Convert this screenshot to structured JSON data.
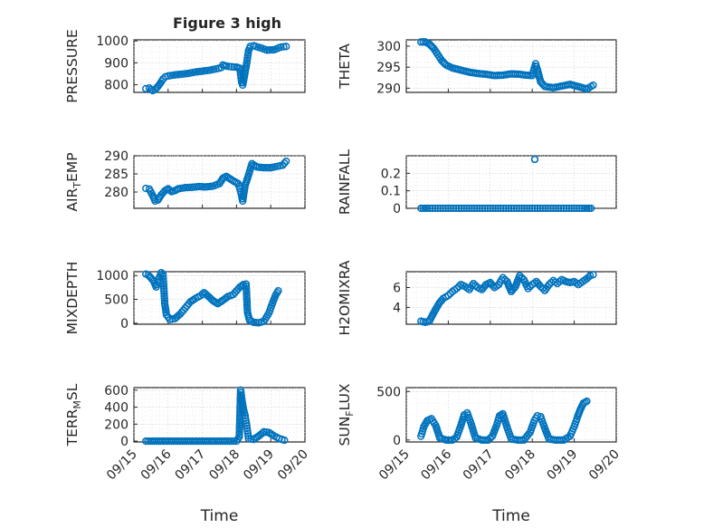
{
  "figure": {
    "title": "Figure 3 high",
    "marker_color": "#0072BD"
  },
  "chart_data": [
    {
      "type": "scatter",
      "ylabel": "PRESSURE",
      "xlabel": "",
      "title": "Figure 3 high",
      "xlim": [
        0,
        5
      ],
      "ylim": [
        765,
        1005
      ],
      "yticks": [
        800,
        900,
        1000
      ],
      "yticklabels": [
        "800",
        "900",
        "1000"
      ],
      "xticks": [
        0,
        1,
        2,
        3,
        4,
        5
      ],
      "xticklabels": [],
      "grid": true,
      "trace": [
        [
          0.35,
          782
        ],
        [
          0.45,
          785
        ],
        [
          0.5,
          778
        ],
        [
          0.55,
          773
        ],
        [
          0.62,
          778
        ],
        [
          0.7,
          792
        ],
        [
          0.78,
          808
        ],
        [
          0.85,
          826
        ],
        [
          0.92,
          836
        ],
        [
          1.0,
          840
        ],
        [
          1.2,
          845
        ],
        [
          1.4,
          848
        ],
        [
          1.6,
          852
        ],
        [
          1.8,
          858
        ],
        [
          2.0,
          862
        ],
        [
          2.2,
          866
        ],
        [
          2.4,
          872
        ],
        [
          2.55,
          878
        ],
        [
          2.6,
          890
        ],
        [
          2.7,
          885
        ],
        [
          2.85,
          882
        ],
        [
          3.0,
          880
        ],
        [
          3.1,
          875
        ],
        [
          3.15,
          810
        ],
        [
          3.18,
          798
        ],
        [
          3.22,
          830
        ],
        [
          3.3,
          900
        ],
        [
          3.35,
          955
        ],
        [
          3.4,
          975
        ],
        [
          3.5,
          978
        ],
        [
          3.7,
          968
        ],
        [
          3.9,
          958
        ],
        [
          4.1,
          960
        ],
        [
          4.3,
          972
        ],
        [
          4.45,
          975
        ]
      ]
    },
    {
      "type": "scatter",
      "ylabel": "THETA",
      "xlabel": "",
      "xlim": [
        0,
        5
      ],
      "ylim": [
        289,
        301.5
      ],
      "yticks": [
        290,
        295,
        300
      ],
      "yticklabels": [
        "290",
        "295",
        "300"
      ],
      "xticks": [
        0,
        1,
        2,
        3,
        4,
        5
      ],
      "xticklabels": [],
      "grid": true,
      "trace": [
        [
          0.35,
          301
        ],
        [
          0.45,
          301
        ],
        [
          0.55,
          300.5
        ],
        [
          0.65,
          299.5
        ],
        [
          0.75,
          298
        ],
        [
          0.85,
          296.5
        ],
        [
          0.95,
          295.5
        ],
        [
          1.1,
          294.8
        ],
        [
          1.3,
          294.3
        ],
        [
          1.5,
          293.8
        ],
        [
          1.7,
          293.5
        ],
        [
          1.9,
          293.3
        ],
        [
          2.1,
          293.0
        ],
        [
          2.3,
          293.1
        ],
        [
          2.5,
          293.4
        ],
        [
          2.7,
          293.3
        ],
        [
          2.85,
          293.1
        ],
        [
          3.0,
          293.0
        ],
        [
          3.08,
          295.8
        ],
        [
          3.12,
          294.5
        ],
        [
          3.2,
          291.5
        ],
        [
          3.3,
          290.4
        ],
        [
          3.5,
          290.1
        ],
        [
          3.7,
          290.5
        ],
        [
          3.9,
          290.9
        ],
        [
          4.05,
          290.5
        ],
        [
          4.2,
          290.1
        ],
        [
          4.3,
          289.8
        ],
        [
          4.45,
          290.7
        ]
      ]
    },
    {
      "type": "scatter",
      "ylabel": "AIR_TEMP",
      "xlabel": "",
      "xlim": [
        0,
        5
      ],
      "ylim": [
        275.5,
        290
      ],
      "yticks": [
        280,
        285,
        290
      ],
      "yticklabels": [
        "280",
        "285",
        "290"
      ],
      "xticks": [
        0,
        1,
        2,
        3,
        4,
        5
      ],
      "xticklabels": [],
      "grid": true,
      "trace": [
        [
          0.35,
          281
        ],
        [
          0.45,
          280.8
        ],
        [
          0.55,
          279
        ],
        [
          0.62,
          277.5
        ],
        [
          0.7,
          277.8
        ],
        [
          0.8,
          279.2
        ],
        [
          0.9,
          280.3
        ],
        [
          1.0,
          280.9
        ],
        [
          1.1,
          280.1
        ],
        [
          1.2,
          280.4
        ],
        [
          1.3,
          280.9
        ],
        [
          1.5,
          281.2
        ],
        [
          1.7,
          281.3
        ],
        [
          1.9,
          281.5
        ],
        [
          2.1,
          281.4
        ],
        [
          2.3,
          281.6
        ],
        [
          2.5,
          282.3
        ],
        [
          2.6,
          283.8
        ],
        [
          2.7,
          284.3
        ],
        [
          2.8,
          283.7
        ],
        [
          2.95,
          282.8
        ],
        [
          3.05,
          282.3
        ],
        [
          3.12,
          280.2
        ],
        [
          3.18,
          277.5
        ],
        [
          3.25,
          281.8
        ],
        [
          3.35,
          284.6
        ],
        [
          3.45,
          287.8
        ],
        [
          3.6,
          286.9
        ],
        [
          3.8,
          286.7
        ],
        [
          4.0,
          286.7
        ],
        [
          4.2,
          287.1
        ],
        [
          4.35,
          287.4
        ],
        [
          4.45,
          288.5
        ]
      ]
    },
    {
      "type": "scatter",
      "ylabel": "RAINFALL",
      "xlabel": "",
      "xlim": [
        0,
        5
      ],
      "ylim": [
        0,
        0.3
      ],
      "yticks": [
        0,
        0.1,
        0.2
      ],
      "yticklabels": [
        "0",
        "0.1",
        "0.2"
      ],
      "xticks": [
        0,
        1,
        2,
        3,
        4,
        5
      ],
      "xticklabels": [],
      "grid": true,
      "trace": [
        [
          0.35,
          0
        ],
        [
          0.5,
          0
        ],
        [
          0.75,
          0
        ],
        [
          1.0,
          0
        ],
        [
          1.25,
          0
        ],
        [
          1.5,
          0
        ],
        [
          1.75,
          0
        ],
        [
          2.0,
          0
        ],
        [
          2.25,
          0
        ],
        [
          2.5,
          0
        ],
        [
          2.75,
          0
        ],
        [
          3.0,
          0
        ],
        [
          3.25,
          0
        ],
        [
          3.5,
          0
        ],
        [
          3.75,
          0
        ],
        [
          4.0,
          0
        ],
        [
          4.25,
          0
        ],
        [
          4.45,
          0
        ],
        [
          3.06,
          0.28
        ]
      ]
    },
    {
      "type": "scatter",
      "ylabel": "MIXDEPTH",
      "xlabel": "",
      "xlim": [
        0,
        5
      ],
      "ylim": [
        -20,
        1080
      ],
      "yticks": [
        0,
        500,
        1000
      ],
      "yticklabels": [
        "0",
        "500",
        "1000"
      ],
      "xticks": [
        0,
        1,
        2,
        3,
        4,
        5
      ],
      "xticklabels": [],
      "grid": true,
      "trace": [
        [
          0.35,
          1030
        ],
        [
          0.42,
          1010
        ],
        [
          0.5,
          950
        ],
        [
          0.58,
          880
        ],
        [
          0.65,
          760
        ],
        [
          0.72,
          920
        ],
        [
          0.8,
          1060
        ],
        [
          0.85,
          1030
        ],
        [
          0.9,
          420
        ],
        [
          0.95,
          180
        ],
        [
          1.05,
          80
        ],
        [
          1.2,
          100
        ],
        [
          1.35,
          190
        ],
        [
          1.5,
          320
        ],
        [
          1.65,
          450
        ],
        [
          1.8,
          520
        ],
        [
          1.95,
          580
        ],
        [
          2.05,
          640
        ],
        [
          2.15,
          580
        ],
        [
          2.3,
          480
        ],
        [
          2.45,
          410
        ],
        [
          2.6,
          480
        ],
        [
          2.75,
          560
        ],
        [
          2.9,
          600
        ],
        [
          3.0,
          680
        ],
        [
          3.1,
          760
        ],
        [
          3.2,
          810
        ],
        [
          3.28,
          820
        ],
        [
          3.32,
          230
        ],
        [
          3.38,
          60
        ],
        [
          3.5,
          20
        ],
        [
          3.65,
          10
        ],
        [
          3.8,
          40
        ],
        [
          3.95,
          220
        ],
        [
          4.05,
          420
        ],
        [
          4.15,
          600
        ],
        [
          4.22,
          680
        ]
      ]
    },
    {
      "type": "scatter",
      "ylabel": "H2OMIXRA",
      "xlabel": "",
      "xlim": [
        0,
        5
      ],
      "ylim": [
        2.3,
        7.6
      ],
      "yticks": [
        4,
        6
      ],
      "yticklabels": [
        "4",
        "6"
      ],
      "xticks": [
        0,
        1,
        2,
        3,
        4,
        5
      ],
      "xticklabels": [],
      "grid": true,
      "trace": [
        [
          0.35,
          2.6
        ],
        [
          0.45,
          2.5
        ],
        [
          0.55,
          2.6
        ],
        [
          0.62,
          3.2
        ],
        [
          0.7,
          3.8
        ],
        [
          0.78,
          4.4
        ],
        [
          0.88,
          4.9
        ],
        [
          1.0,
          5.2
        ],
        [
          1.1,
          5.6
        ],
        [
          1.2,
          5.9
        ],
        [
          1.3,
          6.3
        ],
        [
          1.4,
          6.1
        ],
        [
          1.5,
          5.8
        ],
        [
          1.6,
          6.4
        ],
        [
          1.7,
          6.0
        ],
        [
          1.8,
          5.8
        ],
        [
          1.9,
          6.3
        ],
        [
          2.0,
          6.5
        ],
        [
          2.1,
          6.0
        ],
        [
          2.2,
          6.3
        ],
        [
          2.3,
          7.0
        ],
        [
          2.4,
          6.6
        ],
        [
          2.5,
          5.6
        ],
        [
          2.6,
          6.1
        ],
        [
          2.7,
          7.2
        ],
        [
          2.8,
          6.8
        ],
        [
          2.9,
          5.9
        ],
        [
          3.0,
          6.3
        ],
        [
          3.1,
          6.6
        ],
        [
          3.2,
          6.1
        ],
        [
          3.3,
          5.7
        ],
        [
          3.4,
          6.3
        ],
        [
          3.5,
          6.7
        ],
        [
          3.6,
          6.4
        ],
        [
          3.7,
          6.8
        ],
        [
          3.8,
          6.6
        ],
        [
          3.9,
          6.5
        ],
        [
          4.0,
          6.6
        ],
        [
          4.1,
          6.3
        ],
        [
          4.2,
          6.6
        ],
        [
          4.3,
          6.9
        ],
        [
          4.38,
          7.2
        ],
        [
          4.45,
          7.3
        ]
      ]
    },
    {
      "type": "scatter",
      "ylabel": "TERR_MSL",
      "xlabel": "Time",
      "xlim": [
        0,
        5
      ],
      "ylim": [
        -10,
        630
      ],
      "yticks": [
        0,
        200,
        400,
        600
      ],
      "yticklabels": [
        "0",
        "200",
        "400",
        "600"
      ],
      "xticks": [
        0,
        1,
        2,
        3,
        4,
        5
      ],
      "xticklabels": [
        "09/15",
        "09/16",
        "09/17",
        "09/18",
        "09/19",
        "09/20"
      ],
      "grid": true,
      "trace": [
        [
          0.35,
          0
        ],
        [
          0.6,
          0
        ],
        [
          0.85,
          0
        ],
        [
          1.1,
          0
        ],
        [
          1.35,
          0
        ],
        [
          1.6,
          0
        ],
        [
          1.85,
          0
        ],
        [
          2.1,
          0
        ],
        [
          2.35,
          0
        ],
        [
          2.6,
          0
        ],
        [
          2.85,
          0
        ],
        [
          3.0,
          0
        ],
        [
          3.08,
          50
        ],
        [
          3.12,
          600
        ],
        [
          3.16,
          480
        ],
        [
          3.2,
          380
        ],
        [
          3.25,
          300
        ],
        [
          3.3,
          180
        ],
        [
          3.35,
          30
        ],
        [
          3.5,
          20
        ],
        [
          3.65,
          60
        ],
        [
          3.8,
          110
        ],
        [
          3.95,
          100
        ],
        [
          4.1,
          60
        ],
        [
          4.25,
          30
        ],
        [
          4.4,
          10
        ]
      ]
    },
    {
      "type": "scatter",
      "ylabel": "SUN_FLUX",
      "xlabel": "Time",
      "xlim": [
        0,
        5
      ],
      "ylim": [
        -20,
        540
      ],
      "yticks": [
        0,
        500
      ],
      "yticklabels": [
        "0",
        "500"
      ],
      "xticks": [
        0,
        1,
        2,
        3,
        4,
        5
      ],
      "xticklabels": [
        "09/15",
        "09/16",
        "09/17",
        "09/18",
        "09/19",
        "09/20"
      ],
      "grid": true,
      "trace": [
        [
          0.35,
          40
        ],
        [
          0.42,
          140
        ],
        [
          0.5,
          200
        ],
        [
          0.6,
          220
        ],
        [
          0.7,
          150
        ],
        [
          0.8,
          20
        ],
        [
          0.95,
          0
        ],
        [
          1.1,
          0
        ],
        [
          1.2,
          30
        ],
        [
          1.3,
          150
        ],
        [
          1.38,
          260
        ],
        [
          1.45,
          280
        ],
        [
          1.55,
          160
        ],
        [
          1.65,
          20
        ],
        [
          1.8,
          0
        ],
        [
          1.95,
          0
        ],
        [
          2.05,
          40
        ],
        [
          2.15,
          150
        ],
        [
          2.22,
          250
        ],
        [
          2.3,
          270
        ],
        [
          2.4,
          130
        ],
        [
          2.5,
          10
        ],
        [
          2.65,
          0
        ],
        [
          2.8,
          0
        ],
        [
          2.95,
          80
        ],
        [
          3.05,
          200
        ],
        [
          3.12,
          250
        ],
        [
          3.2,
          240
        ],
        [
          3.3,
          120
        ],
        [
          3.4,
          10
        ],
        [
          3.55,
          0
        ],
        [
          3.75,
          0
        ],
        [
          3.9,
          40
        ],
        [
          4.0,
          140
        ],
        [
          4.08,
          240
        ],
        [
          4.15,
          320
        ],
        [
          4.22,
          380
        ],
        [
          4.3,
          400
        ]
      ]
    }
  ]
}
